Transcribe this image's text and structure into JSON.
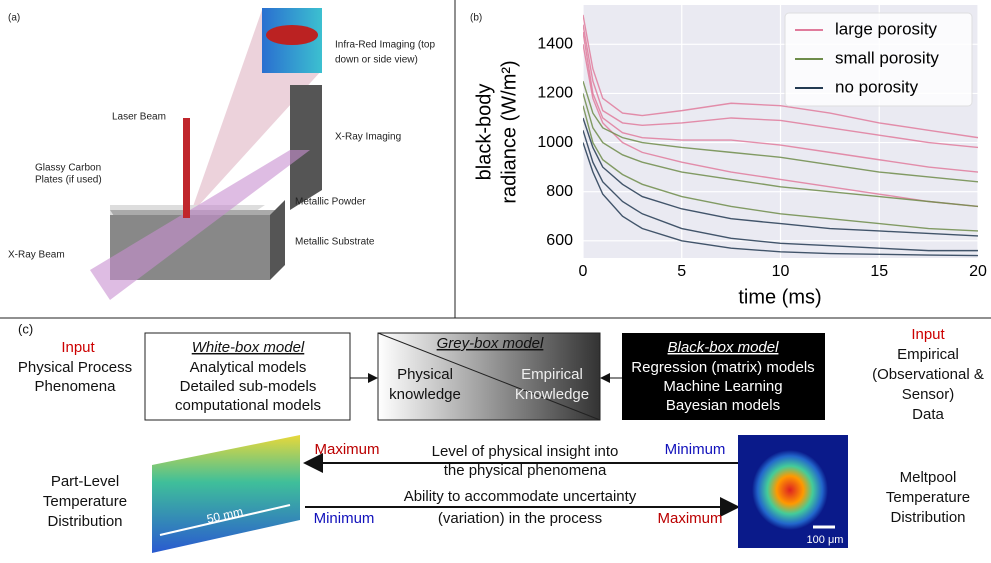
{
  "panel_a": {
    "label": "(a)",
    "infrared": [
      "Infra-Red Imaging (top",
      "down or side view)"
    ],
    "xray_imaging": "X-Ray Imaging",
    "laser": "Laser Beam",
    "plates": [
      "Glassy Carbon",
      "Plates (if used)"
    ],
    "powder": "Metallic Powder",
    "substrate": "Metallic Substrate",
    "xray_beam": "X-Ray Beam"
  },
  "chart_data": {
    "type": "line",
    "panel_label": "(b)",
    "xlabel": "time (ms)",
    "ylabel": [
      "black-body",
      "radiance (W/m²)"
    ],
    "x": [
      0,
      0.5,
      1,
      2,
      3,
      5,
      7.5,
      10,
      12.5,
      15,
      17.5,
      20
    ],
    "xlim": [
      0,
      20
    ],
    "xticks": [
      0,
      5,
      10,
      15,
      20
    ],
    "ylim": [
      530,
      1560
    ],
    "yticks": [
      600,
      800,
      1000,
      1200,
      1400
    ],
    "grid": true,
    "legend": "upper right",
    "series": [
      {
        "name": "large porosity",
        "color": "#e07b9c",
        "values": [
          [
            1520,
            1300,
            1180,
            1120,
            1110,
            1130,
            1160,
            1150,
            1120,
            1080,
            1050,
            1020
          ],
          [
            1480,
            1250,
            1130,
            1080,
            1070,
            1080,
            1100,
            1090,
            1060,
            1030,
            1000,
            980
          ],
          [
            1450,
            1200,
            1100,
            1040,
            1020,
            1010,
            1010,
            990,
            960,
            930,
            900,
            880
          ],
          [
            1400,
            1180,
            1080,
            1000,
            960,
            920,
            880,
            850,
            820,
            790,
            760,
            740
          ]
        ]
      },
      {
        "name": "small porosity",
        "color": "#6e8c4a",
        "values": [
          [
            1250,
            1120,
            1060,
            1020,
            1000,
            980,
            960,
            940,
            910,
            880,
            860,
            840
          ],
          [
            1200,
            1060,
            1000,
            950,
            920,
            880,
            850,
            820,
            800,
            780,
            760,
            740
          ],
          [
            1150,
            1000,
            930,
            870,
            830,
            780,
            740,
            710,
            690,
            670,
            650,
            640
          ]
        ]
      },
      {
        "name": "no porosity",
        "color": "#233a52",
        "values": [
          [
            1100,
            980,
            900,
            830,
            780,
            730,
            690,
            670,
            650,
            640,
            630,
            620
          ],
          [
            1050,
            920,
            840,
            760,
            710,
            650,
            610,
            590,
            580,
            570,
            560,
            560
          ],
          [
            1000,
            880,
            790,
            700,
            650,
            600,
            570,
            555,
            548,
            545,
            542,
            540
          ]
        ]
      }
    ]
  },
  "panel_c": {
    "label": "(c)",
    "input_left": "Input",
    "left_input": [
      "Physical Process",
      "Phenomena"
    ],
    "white_box": {
      "title": "White-box model",
      "lines": [
        "Analytical models",
        "Detailed sub-models",
        "computational models"
      ]
    },
    "grey_box": {
      "title": "Grey-box model",
      "left": [
        "Physical",
        "knowledge"
      ],
      "right": [
        "Empirical",
        "Knowledge"
      ]
    },
    "black_box": {
      "title": "Black-box model",
      "lines": [
        "Regression (matrix) models",
        "Machine Learning",
        "Bayesian models"
      ]
    },
    "input_right": "Input",
    "right_input": [
      "Empirical",
      "(Observational &",
      "Sensor)",
      "Data"
    ],
    "part": [
      "Part-Level",
      "Temperature",
      "Distribution"
    ],
    "part_scale": "50 mm",
    "meltpool": [
      "Meltpool",
      "Temperature",
      "Distribution"
    ],
    "meltpool_scale": "100 μm",
    "insight": {
      "max": "Maximum",
      "min": "Minimum",
      "text": [
        "Level of physical insight into",
        "the physical phenomena"
      ]
    },
    "uncertainty": {
      "min": "Minimum",
      "max": "Maximum",
      "text": [
        "Ability to accommodate uncertainty",
        "(variation) in the process"
      ]
    }
  }
}
